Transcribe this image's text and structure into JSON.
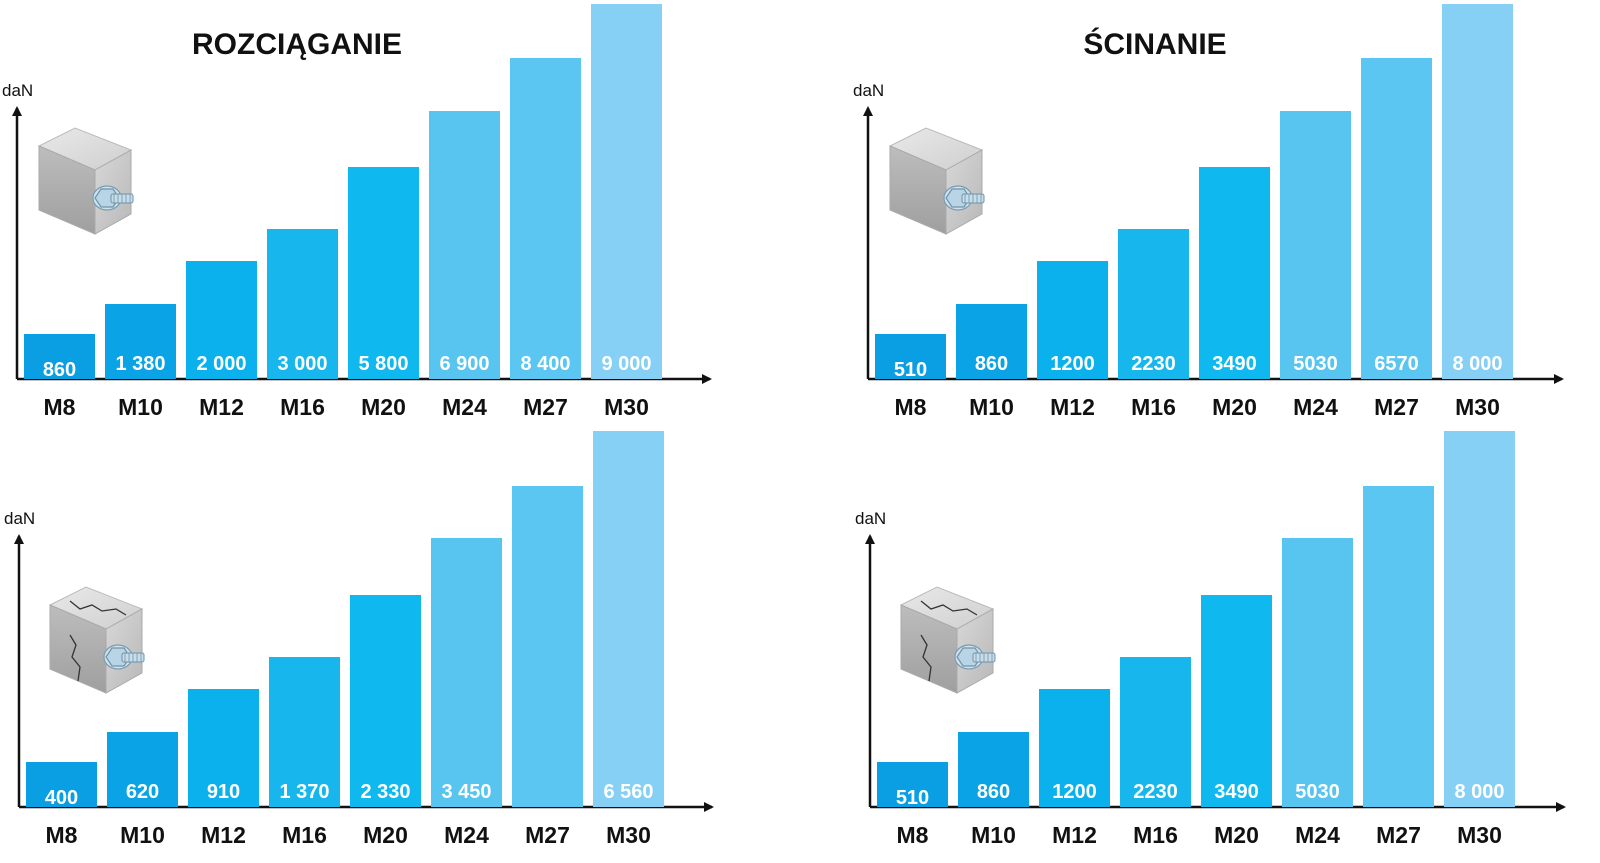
{
  "titles": {
    "tension": "ROZCIĄGANIE",
    "shear": "ŚCINANIE"
  },
  "bar_colors": [
    "#0a9ee3",
    "#0aa3e6",
    "#0ab1ec",
    "#17b6ec",
    "#0fb9ef",
    "#58c4f0",
    "#5ac6f1",
    "#86cff5"
  ],
  "chart_data": [
    {
      "type": "bar",
      "title": "ROZCIĄGANIE",
      "ylabel": "daN",
      "categories": [
        "M8",
        "M10",
        "M12",
        "M16",
        "M20",
        "M24",
        "M27",
        "M30"
      ],
      "values": [
        860,
        1380,
        2000,
        3000,
        5800,
        6900,
        8400,
        9000
      ],
      "labels": [
        "860",
        "1 380",
        "2 000",
        "3 000",
        "5 800",
        "6 900",
        "8 400",
        "9 000"
      ],
      "icon": "concrete-block-icon"
    },
    {
      "type": "bar",
      "title": "ŚCINANIE",
      "ylabel": "daN",
      "categories": [
        "M8",
        "M10",
        "M12",
        "M16",
        "M20",
        "M24",
        "M27",
        "M30"
      ],
      "values": [
        510,
        860,
        1200,
        2230,
        3490,
        5030,
        6570,
        8000
      ],
      "labels": [
        "510",
        "860",
        "1200",
        "2230",
        "3490",
        "5030",
        "6570",
        "8 000"
      ],
      "icon": "concrete-block-icon"
    },
    {
      "type": "bar",
      "title": "",
      "ylabel": "daN",
      "categories": [
        "M8",
        "M10",
        "M12",
        "M16",
        "M20",
        "M24",
        "M27",
        "M30"
      ],
      "values": [
        400,
        620,
        910,
        1370,
        2330,
        3450,
        null,
        6560
      ],
      "labels": [
        "400",
        "620",
        "910",
        "1 370",
        "2 330",
        "3 450",
        "",
        "6 560"
      ],
      "icon": "cracked-concrete-block-icon"
    },
    {
      "type": "bar",
      "title": "",
      "ylabel": "daN",
      "categories": [
        "M8",
        "M10",
        "M12",
        "M16",
        "M20",
        "M24",
        "M27",
        "M30"
      ],
      "values": [
        510,
        860,
        1200,
        2230,
        3490,
        5030,
        null,
        8000
      ],
      "labels": [
        "510",
        "860",
        "1200",
        "2230",
        "3490",
        "5030",
        "",
        "8 000"
      ],
      "icon": "cracked-concrete-block-icon"
    }
  ]
}
